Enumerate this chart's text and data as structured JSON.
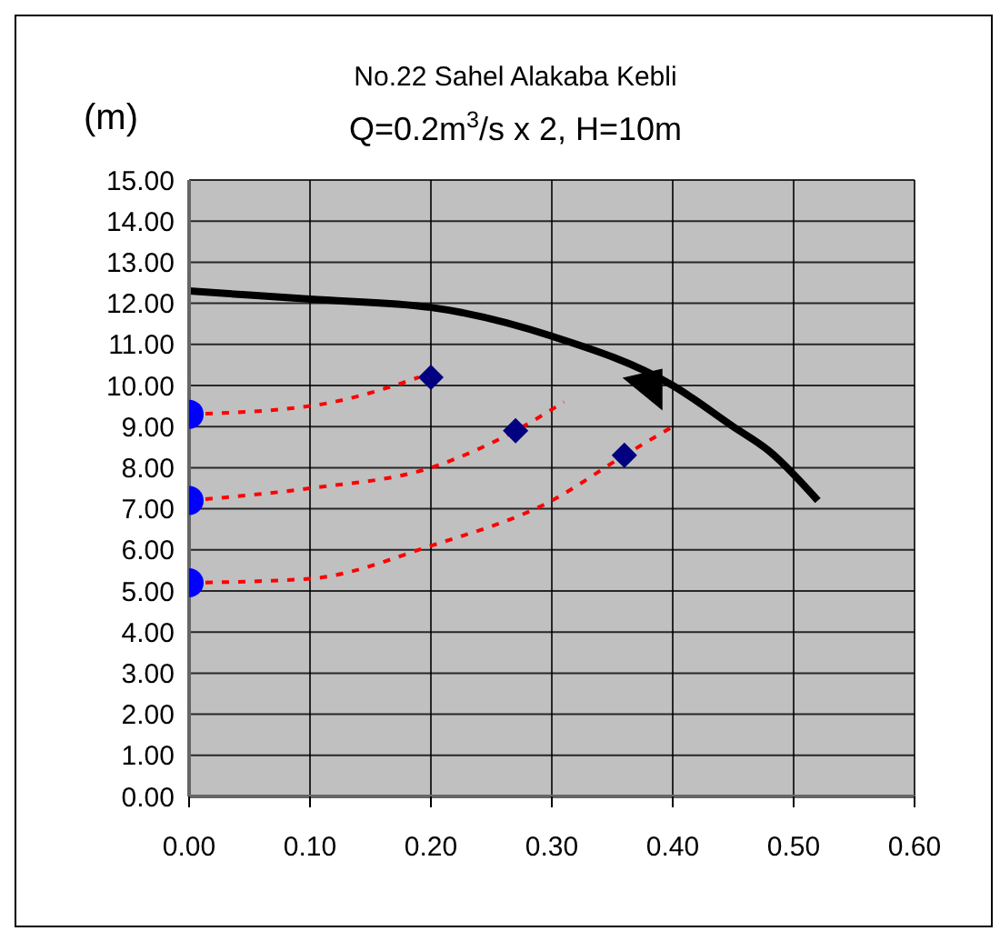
{
  "chart_data": {
    "type": "line",
    "title": "No.22 Sahel Alakaba Kebli",
    "subtitle": "Q=0.2m$^{3}$/s x 2, H=10m",
    "ylabel": "(m)",
    "xlim": [
      0,
      0.6
    ],
    "xticks": [
      {
        "value": 0,
        "label": "0.00"
      },
      {
        "value": 0.1,
        "label": "0.10"
      },
      {
        "value": 0.2,
        "label": "0.20"
      },
      {
        "value": 0.3,
        "label": "0.30"
      },
      {
        "value": 0.4,
        "label": "0.40"
      },
      {
        "value": 0.5,
        "label": "0.50"
      },
      {
        "value": 0.6,
        "label": "0.60"
      }
    ],
    "ylim": [
      0,
      15
    ],
    "yticks": [
      {
        "value": 0,
        "label": "0.00"
      },
      {
        "value": 1,
        "label": "1.00"
      },
      {
        "value": 2,
        "label": "2.00"
      },
      {
        "value": 3,
        "label": "3.00"
      },
      {
        "value": 4,
        "label": "4.00"
      },
      {
        "value": 5,
        "label": "5.00"
      },
      {
        "value": 6,
        "label": "6.00"
      },
      {
        "value": 7,
        "label": "7.00"
      },
      {
        "value": 8,
        "label": "8.00"
      },
      {
        "value": 9,
        "label": "9.00"
      },
      {
        "value": 10,
        "label": "10.00"
      },
      {
        "value": 11,
        "label": "11.00"
      },
      {
        "value": 12,
        "label": "12.00"
      },
      {
        "value": 13,
        "label": "13.00"
      },
      {
        "value": 14,
        "label": "14.00"
      },
      {
        "value": 15,
        "label": "15.00"
      }
    ],
    "grid": true,
    "series": [
      {
        "color": "#000000",
        "marker": "none",
        "line_style": "solid",
        "x": [
          0,
          0.1,
          0.2,
          0.3,
          0.4,
          0.45,
          0.48,
          0.52
        ],
        "values": [
          12.3,
          12.1,
          11.9,
          11.2,
          10.0,
          9.0,
          8.4,
          7.2
        ]
      },
      {
        "color": "#ff0000",
        "marker": "none",
        "line_style": "dashed",
        "x": [
          0,
          0.1,
          0.17,
          0.19
        ],
        "values": [
          9.3,
          9.5,
          10.0,
          10.2
        ]
      },
      {
        "color": "#ff0000",
        "marker": "none",
        "line_style": "dashed",
        "x": [
          0,
          0.1,
          0.2,
          0.27,
          0.31
        ],
        "values": [
          7.2,
          7.5,
          8.0,
          8.9,
          9.6
        ]
      },
      {
        "color": "#ff0000",
        "marker": "none",
        "line_style": "dashed",
        "x": [
          0,
          0.1,
          0.2,
          0.3,
          0.36,
          0.4
        ],
        "values": [
          5.2,
          5.3,
          6.1,
          7.2,
          8.3,
          9.0
        ]
      },
      {
        "type": "scatter",
        "color": "#0000ff",
        "marker": "circle",
        "x": [
          0,
          0,
          0
        ],
        "values": [
          9.3,
          7.2,
          5.2
        ]
      },
      {
        "type": "scatter",
        "color": "#000080",
        "marker": "diamond",
        "x": [
          0.2,
          0.27,
          0.36
        ],
        "values": [
          10.2,
          8.9,
          8.3
        ]
      }
    ]
  }
}
